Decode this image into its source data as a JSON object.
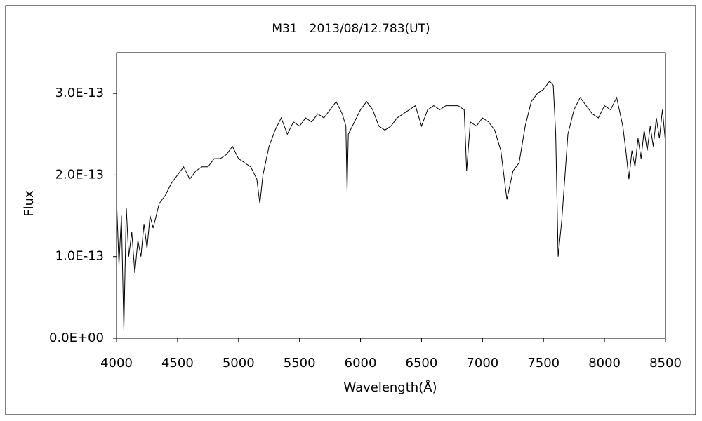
{
  "chart_data": {
    "type": "line",
    "title": "M31　2013/08/12.783(UT)",
    "x_label": "Wavelength(Å)",
    "y_label": "Flux",
    "xlim": [
      4000,
      8500
    ],
    "ylim": [
      0,
      3.5e-13
    ],
    "xticks": [
      4000,
      4500,
      5000,
      5500,
      6000,
      6500,
      7000,
      7500,
      8000,
      8500
    ],
    "yticks": [
      {
        "value": 0,
        "label": "0.0E+00"
      },
      {
        "value": 1e-13,
        "label": "1.0E-13"
      },
      {
        "value": 2e-13,
        "label": "2.0E-13"
      },
      {
        "value": 3e-13,
        "label": "3.0E-13"
      }
    ],
    "grid": false,
    "series": [
      {
        "name": "M31",
        "color": "#000000",
        "x": [
          4000,
          4020,
          4040,
          4060,
          4080,
          4100,
          4125,
          4150,
          4175,
          4200,
          4225,
          4250,
          4275,
          4300,
          4350,
          4400,
          4450,
          4500,
          4550,
          4600,
          4650,
          4700,
          4750,
          4800,
          4850,
          4900,
          4950,
          5000,
          5050,
          5100,
          5150,
          5175,
          5200,
          5250,
          5300,
          5350,
          5400,
          5450,
          5500,
          5550,
          5600,
          5650,
          5700,
          5750,
          5800,
          5850,
          5880,
          5890,
          5900,
          5950,
          6000,
          6050,
          6100,
          6150,
          6200,
          6250,
          6300,
          6350,
          6400,
          6450,
          6500,
          6550,
          6600,
          6650,
          6700,
          6750,
          6800,
          6850,
          6870,
          6900,
          6950,
          7000,
          7050,
          7100,
          7150,
          7200,
          7250,
          7300,
          7350,
          7400,
          7450,
          7500,
          7550,
          7580,
          7600,
          7620,
          7650,
          7700,
          7750,
          7800,
          7850,
          7900,
          7950,
          8000,
          8050,
          8100,
          8150,
          8175,
          8200,
          8225,
          8250,
          8275,
          8300,
          8325,
          8350,
          8375,
          8400,
          8425,
          8450,
          8475,
          8500
        ],
        "values": [
          1.7e-13,
          9e-14,
          1.5e-13,
          1e-14,
          1.6e-13,
          1e-13,
          1.3e-13,
          8e-14,
          1.2e-13,
          1e-13,
          1.4e-13,
          1.1e-13,
          1.5e-13,
          1.35e-13,
          1.65e-13,
          1.75e-13,
          1.9e-13,
          2e-13,
          2.1e-13,
          1.95e-13,
          2.05e-13,
          2.1e-13,
          2.1e-13,
          2.2e-13,
          2.2e-13,
          2.25e-13,
          2.35e-13,
          2.2e-13,
          2.15e-13,
          2.1e-13,
          1.95e-13,
          1.65e-13,
          2e-13,
          2.35e-13,
          2.55e-13,
          2.7e-13,
          2.5e-13,
          2.65e-13,
          2.6e-13,
          2.7e-13,
          2.65e-13,
          2.75e-13,
          2.7e-13,
          2.8e-13,
          2.9e-13,
          2.75e-13,
          2.6e-13,
          1.8e-13,
          2.5e-13,
          2.65e-13,
          2.8e-13,
          2.9e-13,
          2.8e-13,
          2.6e-13,
          2.55e-13,
          2.6e-13,
          2.7e-13,
          2.75e-13,
          2.8e-13,
          2.85e-13,
          2.6e-13,
          2.8e-13,
          2.85e-13,
          2.8e-13,
          2.85e-13,
          2.85e-13,
          2.85e-13,
          2.8e-13,
          2.05e-13,
          2.65e-13,
          2.6e-13,
          2.7e-13,
          2.65e-13,
          2.55e-13,
          2.3e-13,
          1.7e-13,
          2.05e-13,
          2.15e-13,
          2.6e-13,
          2.9e-13,
          3e-13,
          3.05e-13,
          3.15e-13,
          3.1e-13,
          2.5e-13,
          1e-13,
          1.45e-13,
          2.5e-13,
          2.8e-13,
          2.95e-13,
          2.85e-13,
          2.75e-13,
          2.7e-13,
          2.85e-13,
          2.8e-13,
          2.95e-13,
          2.6e-13,
          2.3e-13,
          1.95e-13,
          2.3e-13,
          2.1e-13,
          2.45e-13,
          2.2e-13,
          2.55e-13,
          2.3e-13,
          2.6e-13,
          2.35e-13,
          2.7e-13,
          2.45e-13,
          2.8e-13,
          2.4e-13
        ]
      }
    ]
  }
}
